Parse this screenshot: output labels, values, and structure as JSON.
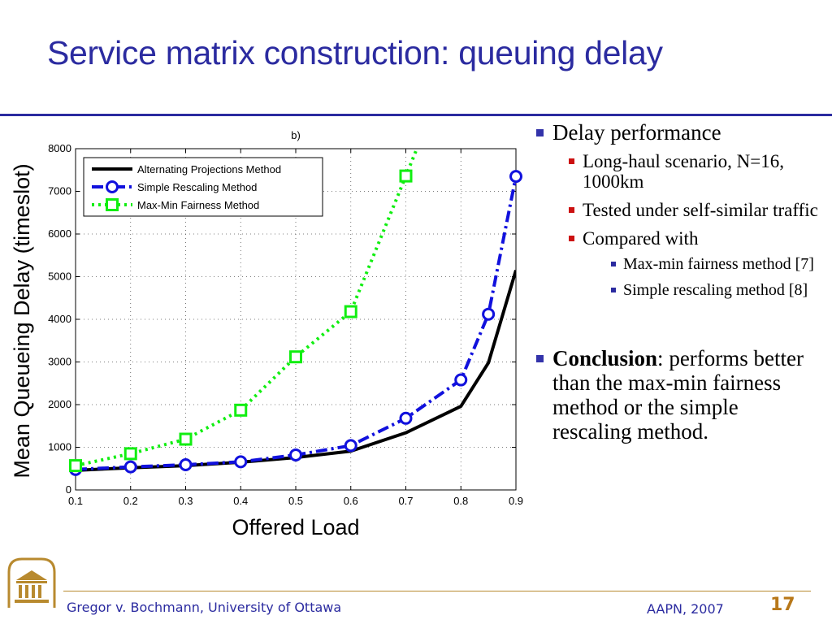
{
  "slide": {
    "title": "Service matrix construction: queuing delay"
  },
  "bullets": {
    "delay": "Delay performance",
    "long_haul": "Long-haul scenario, N=16, 1000km",
    "self_similar": "Tested under self-similar traffic",
    "compared": "Compared with",
    "maxmin": "Max-min fairness method [7]",
    "rescaling": "Simple rescaling method [8]",
    "conclusion_bold": "Conclusion",
    "conclusion_colon": ":",
    "conclusion_text": "performs better than the max-min fairness method or the simple rescaling method."
  },
  "footer": {
    "author": "Gregor v. Bochmann, University of Ottawa",
    "venue": "AAPN, 2007",
    "page": "17"
  },
  "chart_data": {
    "type": "line",
    "title": "b)",
    "xlabel": "Offered Load",
    "ylabel": "Mean Queueing Delay (timeslot)",
    "xlim": [
      0.1,
      0.9
    ],
    "ylim": [
      0,
      8000
    ],
    "xticks": [
      "0.1",
      "0.2",
      "0.3",
      "0.4",
      "0.5",
      "0.6",
      "0.7",
      "0.8",
      "0.9"
    ],
    "yticks": [
      "0",
      "1000",
      "2000",
      "3000",
      "4000",
      "5000",
      "6000",
      "7000",
      "8000"
    ],
    "grid": true,
    "legend_position": "top-left",
    "series": [
      {
        "name": "Alternating Projections Method",
        "color": "#000000",
        "style": "solid",
        "marker": "none",
        "x": [
          0.1,
          0.2,
          0.3,
          0.4,
          0.5,
          0.6,
          0.7,
          0.8,
          0.85,
          0.9
        ],
        "y": [
          460,
          520,
          570,
          650,
          760,
          910,
          1340,
          1960,
          2980,
          5150
        ]
      },
      {
        "name": "Simple Rescaling Method",
        "color": "#1111dd",
        "style": "dashdot",
        "marker": "circle",
        "x": [
          0.1,
          0.2,
          0.3,
          0.4,
          0.5,
          0.6,
          0.7,
          0.8,
          0.85,
          0.9
        ],
        "y": [
          480,
          540,
          590,
          660,
          820,
          1040,
          1680,
          2580,
          4120,
          7350
        ]
      },
      {
        "name": "Max-Min Fairness Method",
        "color": "#11ee11",
        "style": "dotted",
        "marker": "square",
        "x": [
          0.1,
          0.2,
          0.3,
          0.4,
          0.5,
          0.6,
          0.7,
          0.72
        ],
        "y": [
          570,
          850,
          1190,
          1870,
          3120,
          4180,
          7360,
          8000
        ]
      }
    ]
  }
}
